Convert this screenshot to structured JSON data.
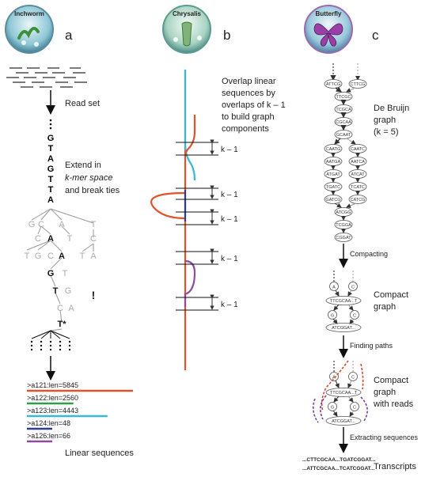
{
  "panels": {
    "a": {
      "letter": "a",
      "badge": "Inchworm",
      "read_set_label": "Read set",
      "extend_label": [
        "Extend in",
        "k-mer space",
        "and break ties"
      ],
      "sequence_letters": [
        "G",
        "T",
        "A",
        "G",
        "T",
        "T",
        "A"
      ],
      "tree_rows": [
        [
          "G",
          "C",
          "A",
          "T"
        ],
        [
          "C",
          "A",
          "T",
          "C"
        ],
        [
          "T",
          "G",
          "C",
          "A",
          "T",
          "A"
        ],
        [
          "G",
          "T"
        ],
        [
          "T",
          "G"
        ],
        [
          "C",
          "A"
        ],
        [
          "T*"
        ]
      ],
      "contigs": [
        {
          "label": ">a121:len=5845",
          "color": "#e2522b",
          "length": 5845
        },
        {
          "label": ">a122:len=2560",
          "color": "#2e9e48",
          "length": 2560
        },
        {
          "label": ">a123:len=4443",
          "color": "#38b8d6",
          "length": 4443
        },
        {
          "label": ">a124:len=48",
          "color": "#2c3e8c",
          "length": 48
        },
        {
          "label": ">a126:len=66",
          "color": "#8e4a9e",
          "length": 66
        }
      ],
      "linear_label": "Linear sequences"
    },
    "b": {
      "letter": "b",
      "badge": "Chrysalis",
      "overlap_text": [
        "Overlap linear",
        "sequences by",
        "overlaps of k – 1",
        "to build graph",
        "components"
      ],
      "k_labels": [
        "k – 1",
        "k – 1",
        "k – 1",
        "k – 1",
        "k – 1"
      ]
    },
    "c": {
      "letter": "c",
      "badge": "Butterfly",
      "debruijn_label": [
        "De Bruijn",
        "graph",
        "(k = 5)"
      ],
      "debruijn_nodes_left": [
        "ATTCG",
        "TTCGC",
        "TCGCA",
        "CGCAA",
        "GCAAT",
        "CAATG",
        "AATGA",
        "ATGAT",
        "TGATC",
        "GATCG"
      ],
      "debruijn_nodes_right": [
        "CTTCG",
        "CAATC",
        "AATCA",
        "ATCAT",
        "TCATC",
        "CATCG"
      ],
      "debruijn_nodes_merge": [
        "ATCGG",
        "TCGGA",
        "CGGAT"
      ],
      "compacting_label": "Compacting",
      "compact_graph_label": [
        "Compact",
        "graph"
      ],
      "compact_nodes": {
        "top_left": "A",
        "top_right": "C",
        "main": "TTCGCAA...T",
        "mid_left": "G",
        "mid_right": "C",
        "bottom": "ATCGGAT..."
      },
      "finding_paths_label": "Finding paths",
      "compact_reads_label": [
        "Compact",
        "graph",
        "with reads"
      ],
      "extracting_label": "Extracting sequences",
      "transcripts": [
        {
          "text": "...CTTCGCAA...TGATCGGAT...",
          "color": "#7a3e98"
        },
        {
          "text": "...ATTCGCAA...TCATCGGAT...",
          "color": "#d04a2a"
        }
      ],
      "transcripts_label": "Transcripts"
    }
  }
}
